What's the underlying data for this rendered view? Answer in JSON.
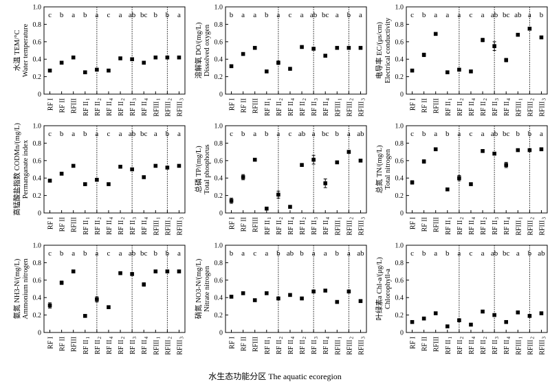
{
  "figure": {
    "xlabel": "水生态功能分区 The aquatic ecoregion"
  },
  "categories": [
    "RF I",
    "RF II",
    "RFIII",
    "RF II 1",
    "RF II 2",
    "RF II 4",
    "RF II 2",
    "RF II 3",
    "RF II 4",
    "RFIII1",
    "RFIII2",
    "RFIII3"
  ],
  "tick_labels": [
    {
      "base": "RF I",
      "sub": ""
    },
    {
      "base": "RF II",
      "sub": ""
    },
    {
      "base": "RFIII",
      "sub": ""
    },
    {
      "base": "RF II",
      "sub": "1"
    },
    {
      "base": "RF II",
      "sub": "2"
    },
    {
      "base": "RF II",
      "sub": "4"
    },
    {
      "base": "RF II",
      "sub": "2"
    },
    {
      "base": "RF II",
      "sub": "3"
    },
    {
      "base": "RF II",
      "sub": "4"
    },
    {
      "base": "RFIII",
      "sub": "1"
    },
    {
      "base": "RFIII",
      "sub": "2"
    },
    {
      "base": "RFIII",
      "sub": "3"
    }
  ],
  "chart_data": [
    {
      "type": "scatter",
      "ylabel_cn": "水温 TEM/°C",
      "ylabel_en": "Water temperature",
      "ylim": [
        0,
        1
      ],
      "yticks": [
        "0",
        "0.2",
        "0.4",
        "0.6",
        "0.8",
        "1.0"
      ],
      "values": [
        0.27,
        0.36,
        0.42,
        0.25,
        0.28,
        0.27,
        0.41,
        0.4,
        0.36,
        0.42,
        0.42,
        0.42
      ],
      "errors": [
        0,
        0,
        0,
        0,
        0,
        0,
        0,
        0,
        0,
        0,
        0,
        0
      ],
      "letters": [
        "c",
        "b",
        "a",
        "b",
        "a",
        "c",
        "a",
        "ab",
        "bc",
        "b",
        "b",
        "a"
      ]
    },
    {
      "type": "scatter",
      "ylabel_cn": "溶解氧 DO/(mg/L)",
      "ylabel_en": "Dissolved oxygen",
      "ylim": [
        0,
        1
      ],
      "yticks": [
        "0",
        "0.2",
        "0.4",
        "0.6",
        "0.8",
        "1.0"
      ],
      "values": [
        0.32,
        0.46,
        0.53,
        0.26,
        0.36,
        0.29,
        0.54,
        0.52,
        0.44,
        0.53,
        0.53,
        0.53
      ],
      "errors": [
        0,
        0,
        0,
        0,
        0.02,
        0,
        0,
        0,
        0,
        0,
        0,
        0
      ],
      "letters": [
        "b",
        "a",
        "a",
        "b",
        "a",
        "c",
        "a",
        "ab",
        "bc",
        "a",
        "b",
        "a"
      ]
    },
    {
      "type": "scatter",
      "ylabel_cn": "电导率 EC/(μs/cm)",
      "ylabel_en": "Electrical conductivity",
      "ylim": [
        0,
        1
      ],
      "yticks": [
        "0",
        "0.2",
        "0.4",
        "0.6",
        "0.8",
        "1.0"
      ],
      "values": [
        0.27,
        0.45,
        0.69,
        0.25,
        0.28,
        0.26,
        0.62,
        0.55,
        0.39,
        0.68,
        0.75,
        0.65
      ],
      "errors": [
        0,
        0.02,
        0,
        0,
        0,
        0,
        0.02,
        0.05,
        0.02,
        0,
        0,
        0
      ],
      "letters": [
        "c",
        "b",
        "a",
        "a",
        "a",
        "c",
        "a",
        "ab",
        "bc",
        "ab",
        "a",
        "b"
      ]
    },
    {
      "type": "scatter",
      "ylabel_cn": "高锰酸盐指数 CODMn/(mg/L)",
      "ylabel_en": "Permanganate index",
      "ylim": [
        0,
        1
      ],
      "yticks": [
        "0",
        "0.2",
        "0.4",
        "0.6",
        "0.8",
        "1.0"
      ],
      "values": [
        0.37,
        0.45,
        0.54,
        0.33,
        0.38,
        0.33,
        0.53,
        0.5,
        0.41,
        0.54,
        0.52,
        0.54
      ],
      "errors": [
        0,
        0,
        0,
        0,
        0,
        0,
        0,
        0,
        0,
        0,
        0,
        0
      ],
      "letters": [
        "c",
        "b",
        "a",
        "b",
        "a",
        "c",
        "a",
        "ab",
        "bc",
        "a",
        "b",
        "a"
      ]
    },
    {
      "type": "scatter",
      "ylabel_cn": "总磷 TP/(mg/L)",
      "ylabel_en": "Total phosphorus",
      "ylim": [
        0,
        1
      ],
      "yticks": [
        "0",
        "0.2",
        "0.4",
        "0.6",
        "0.8",
        "1.0"
      ],
      "values": [
        0.14,
        0.41,
        0.61,
        0.05,
        0.21,
        0.07,
        0.55,
        0.61,
        0.34,
        0.58,
        0.7,
        0.6
      ],
      "errors": [
        0.03,
        0.03,
        0,
        0,
        0.04,
        0,
        0,
        0.05,
        0.05,
        0,
        0,
        0
      ],
      "letters": [
        "c",
        "b",
        "a",
        "b",
        "a",
        "c",
        "ab",
        "a",
        "bc",
        "b",
        "a",
        "ab"
      ]
    },
    {
      "type": "scatter",
      "ylabel_cn": "总氮 TN/(mg/L)",
      "ylabel_en": "Total nitrogen",
      "ylim": [
        0,
        1
      ],
      "yticks": [
        "0",
        "0.2",
        "0.4",
        "0.6",
        "0.8",
        "1.0"
      ],
      "values": [
        0.35,
        0.59,
        0.73,
        0.27,
        0.4,
        0.33,
        0.71,
        0.68,
        0.55,
        0.72,
        0.72,
        0.73
      ],
      "errors": [
        0.02,
        0.02,
        0,
        0,
        0.03,
        0,
        0,
        0,
        0.03,
        0,
        0,
        0
      ],
      "letters": [
        "c",
        "b",
        "a",
        "b",
        "a",
        "c",
        "a",
        "ab",
        "bc",
        "b",
        "b",
        "a"
      ]
    },
    {
      "type": "scatter",
      "ylabel_cn": "氨氮 NH3-N/(mg/L)",
      "ylabel_en": "Ammonium nitrogen",
      "ylim": [
        0,
        1
      ],
      "yticks": [
        "0",
        "0.2",
        "0.4",
        "0.6",
        "0.8",
        "1.0"
      ],
      "values": [
        0.31,
        0.57,
        0.7,
        0.19,
        0.38,
        0.29,
        0.68,
        0.67,
        0.55,
        0.7,
        0.7,
        0.7
      ],
      "errors": [
        0.03,
        0.02,
        0,
        0,
        0.03,
        0,
        0,
        0,
        0.02,
        0,
        0,
        0
      ],
      "letters": [
        "c",
        "b",
        "a",
        "b",
        "a",
        "c",
        "a",
        "ab",
        "bc",
        "b",
        "b",
        "a"
      ]
    },
    {
      "type": "scatter",
      "ylabel_cn": "硝氮 NO3-N/(mg/L)",
      "ylabel_en": "Nitrate nitrogen",
      "ylim": [
        0,
        1
      ],
      "yticks": [
        "0",
        "0.2",
        "0.4",
        "0.6",
        "0.8",
        "1.0"
      ],
      "values": [
        0.41,
        0.45,
        0.37,
        0.45,
        0.39,
        0.43,
        0.39,
        0.47,
        0.48,
        0.35,
        0.47,
        0.36
      ],
      "errors": [
        0,
        0,
        0,
        0,
        0,
        0,
        0,
        0,
        0,
        0,
        0,
        0
      ],
      "letters": [
        "b",
        "a",
        "c",
        "a",
        "b",
        "ab",
        "b",
        "a",
        "a",
        "b",
        "a",
        "ab"
      ]
    },
    {
      "type": "scatter",
      "ylabel_cn": "叶绿素a Chl-a/(μg/L)",
      "ylabel_en": "Chlorophyll-a",
      "ylim": [
        0,
        1
      ],
      "yticks": [
        "0",
        "0.2",
        "0.4",
        "0.6",
        "0.8",
        "1.0"
      ],
      "values": [
        0.12,
        0.16,
        0.22,
        0.07,
        0.14,
        0.09,
        0.24,
        0.2,
        0.12,
        0.23,
        0.19,
        0.22
      ],
      "errors": [
        0,
        0,
        0,
        0,
        0,
        0,
        0,
        0,
        0,
        0,
        0,
        0
      ],
      "letters": [
        "c",
        "b",
        "a",
        "b",
        "a",
        "c",
        "a",
        "ab",
        "bc",
        "a",
        "b",
        "ab"
      ]
    }
  ]
}
